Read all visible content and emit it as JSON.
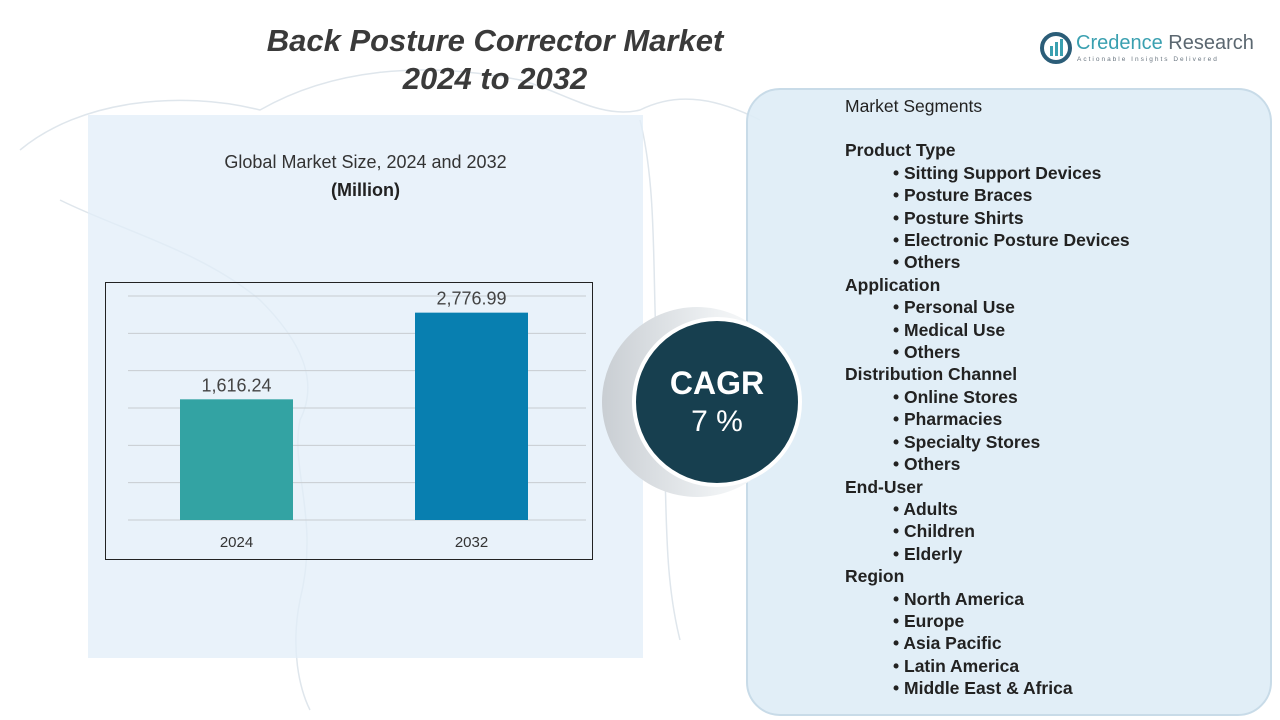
{
  "title": {
    "line1": "Back Posture Corrector Market",
    "line2": "2024 to 2032"
  },
  "logo": {
    "brand_a": "Credence",
    "brand_b": " Research",
    "tagline": "Actionable Insights Delivered"
  },
  "chart_header": {
    "subtitle": "Global Market Size,  2024 and 2032",
    "unit": "(Million)"
  },
  "chart_data": {
    "type": "bar",
    "categories": [
      "2024",
      "2032"
    ],
    "values": [
      1616.24,
      2776.99
    ],
    "value_labels": [
      "1,616.24",
      "2,776.99"
    ],
    "colors": [
      "#33a3a3",
      "#087fb0"
    ],
    "ylim": [
      0,
      3000
    ],
    "grid": true,
    "title": "",
    "xlabel": "",
    "ylabel": ""
  },
  "cagr": {
    "label": "CAGR",
    "value": "7 %"
  },
  "segments": {
    "heading": "Market Segments",
    "groups": [
      {
        "name": "Product Type",
        "items": [
          "Sitting Support Devices",
          "Posture Braces",
          "Posture Shirts",
          "Electronic Posture Devices",
          "Others"
        ]
      },
      {
        "name": "Application",
        "items": [
          "Personal Use",
          "Medical Use",
          "Others"
        ]
      },
      {
        "name": "Distribution Channel",
        "items": [
          "Online Stores",
          "Pharmacies",
          "Specialty Stores",
          "Others"
        ]
      },
      {
        "name": "End-User",
        "items": [
          "Adults",
          "Children",
          "Elderly"
        ]
      },
      {
        "name": "Region",
        "items": [
          "North America",
          "Europe",
          "Asia Pacific",
          "Latin America",
          "Middle East & Africa"
        ]
      }
    ]
  }
}
